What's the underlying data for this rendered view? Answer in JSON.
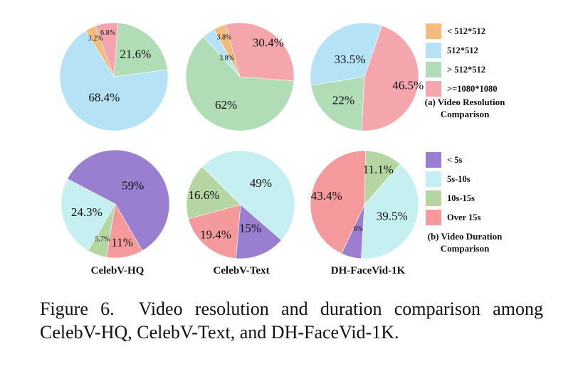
{
  "chart_data": [
    {
      "type": "pie",
      "panel": "resolution",
      "dataset": "CelebV-HQ",
      "categories": [
        "< 512*512",
        "512*512",
        "> 512*512",
        ">=1080*1080"
      ],
      "values": [
        3.2,
        68.4,
        21.6,
        6.8
      ],
      "labels": [
        "3.2%",
        "68.4%",
        "21.6%",
        "6.8%"
      ]
    },
    {
      "type": "pie",
      "panel": "resolution",
      "dataset": "CelebV-Text",
      "categories": [
        "< 512*512",
        "512*512",
        "> 512*512",
        ">=1080*1080"
      ],
      "values": [
        3.8,
        3.8,
        62,
        30.4
      ],
      "labels": [
        "3.8%",
        "3.8%",
        "62%",
        "30.4%"
      ]
    },
    {
      "type": "pie",
      "panel": "resolution",
      "dataset": "DH-FaceVid-1K",
      "categories": [
        "< 512*512",
        "512*512",
        "> 512*512",
        ">=1080*1080"
      ],
      "values": [
        0,
        33.5,
        22,
        46.5
      ],
      "labels": [
        "",
        "33.5%",
        "22%",
        "46.5%"
      ]
    },
    {
      "type": "pie",
      "panel": "duration",
      "dataset": "CelebV-HQ",
      "categories": [
        "< 5s",
        "5s-10s",
        "10s-15s",
        "Over 15s"
      ],
      "values": [
        59,
        24.3,
        5.7,
        11
      ],
      "labels": [
        "59%",
        "24.3%",
        "5.7%",
        "11%"
      ]
    },
    {
      "type": "pie",
      "panel": "duration",
      "dataset": "CelebV-Text",
      "categories": [
        "< 5s",
        "5s-10s",
        "10s-15s",
        "Over 15s"
      ],
      "values": [
        15,
        49,
        16.6,
        19.4
      ],
      "labels": [
        "15%",
        "49%",
        "16.6%",
        "19.4%"
      ]
    },
    {
      "type": "pie",
      "panel": "duration",
      "dataset": "DH-FaceVid-1K",
      "categories": [
        "< 5s",
        "5s-10s",
        "10s-15s",
        "Over 15s"
      ],
      "values": [
        6,
        39.5,
        11.1,
        43.4
      ],
      "labels": [
        "6%",
        "39.5%",
        "11.1%",
        "43.4%"
      ]
    }
  ],
  "datasets": [
    "CelebV-HQ",
    "CelebV-Text",
    "DH-FaceVid-1K"
  ],
  "legends": {
    "resolution": {
      "title_lines": [
        "(a) Video Resolution",
        "Comparison"
      ],
      "entries": [
        "< 512*512",
        "512*512",
        "> 512*512",
        ">=1080*1080"
      ],
      "colors": [
        "#f5bc80",
        "#b5e3f5",
        "#b0dcb6",
        "#f5a6ad"
      ]
    },
    "duration": {
      "title_lines": [
        "(b) Video Duration",
        "Comparison"
      ],
      "entries": [
        "< 5s",
        "5s-10s",
        "10s-15s",
        "Over 15s"
      ],
      "colors": [
        "#9a7fd0",
        "#c5eff1",
        "#b5d6a3",
        "#f59a9c"
      ]
    }
  },
  "caption": "Figure 6.  Video resolution and duration comparison among CelebV-HQ, CelebV-Text, and DH-FaceVid-1K."
}
